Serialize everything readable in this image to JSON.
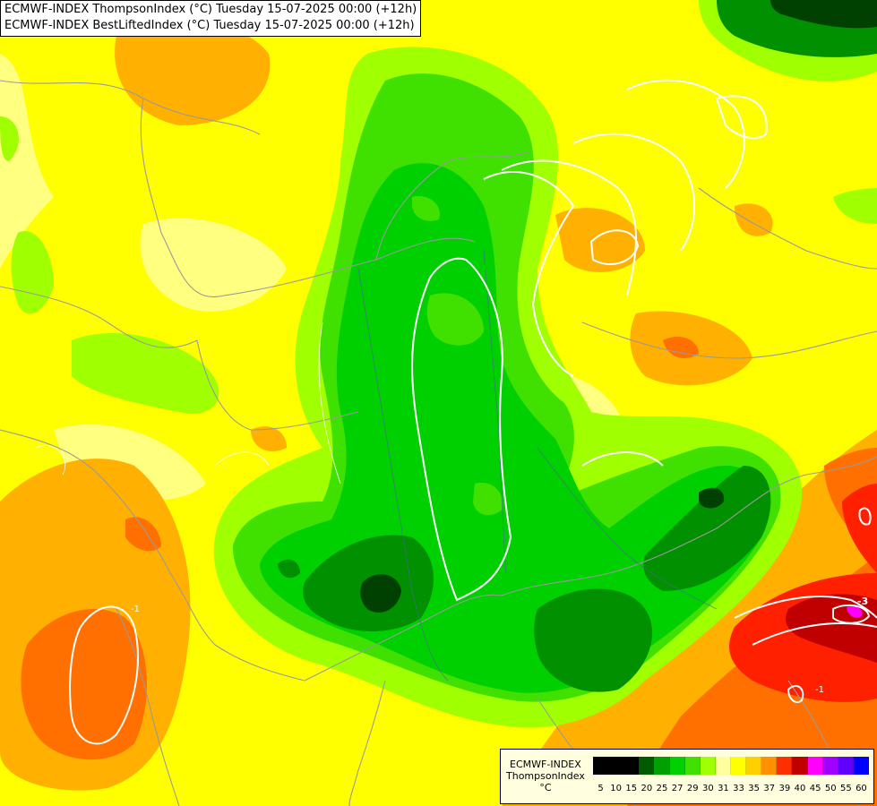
{
  "titles": [
    "ECMWF-INDEX ThompsonIndex (°C) Tuesday 15-07-2025 00:00 (+12h)",
    "ECMWF-INDEX BestLiftedIndex (°C) Tuesday 15-07-2025 00:00 (+12h)"
  ],
  "legend": {
    "line1": "ECMWF-INDEX",
    "line2": "ThompsonIndex",
    "unit": "°C",
    "ticks": [
      "5",
      "10",
      "15",
      "20",
      "25",
      "27",
      "29",
      "30",
      "31",
      "33",
      "35",
      "37",
      "39",
      "40",
      "45",
      "50",
      "55",
      "60"
    ],
    "colors": [
      "#000000",
      "#000000",
      "#000000",
      "#005a00",
      "#00a000",
      "#00d000",
      "#40e000",
      "#a0ff00",
      "#ffffa0",
      "#ffff00",
      "#ffd000",
      "#ff9000",
      "#ff3000",
      "#c00000",
      "#ff00ff",
      "#a000ff",
      "#6000ff",
      "#0000ff"
    ]
  },
  "contour_labels": [
    "-3",
    "-1",
    "-1"
  ],
  "colors": {
    "yellow": "#ffff00",
    "light_yellow": "#ffff80",
    "orange": "#ffb000",
    "dark_orange": "#ff7000",
    "red": "#ff2000",
    "dark_red": "#c00000",
    "magenta": "#ff00ff",
    "yellow_green": "#a0ff00",
    "light_green": "#40e000",
    "green": "#00c800",
    "dark_green": "#009000",
    "darkest_green": "#004000"
  }
}
